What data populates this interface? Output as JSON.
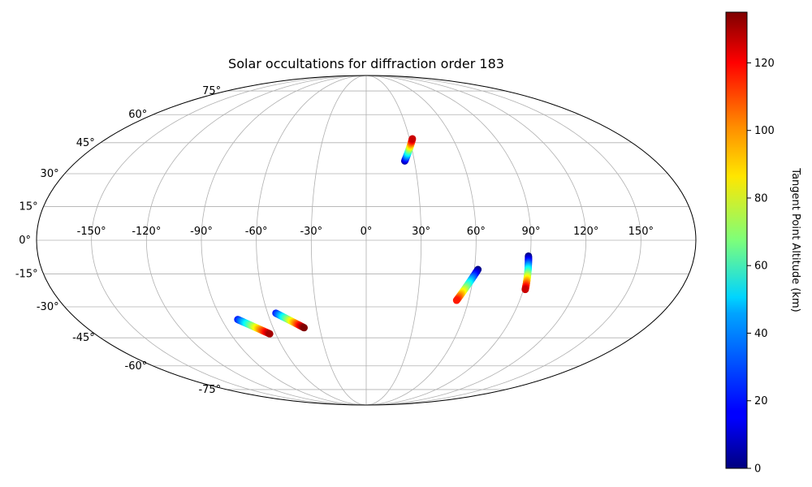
{
  "chart_data": {
    "type": "scatter",
    "projection": "Mollweide",
    "title": "Solar occultations for diffraction order 183",
    "xlabel": "",
    "ylabel": "",
    "longitude_ticks": [
      -150,
      -120,
      -90,
      -60,
      -30,
      0,
      30,
      60,
      90,
      120,
      150
    ],
    "longitude_tick_labels": [
      "-150°",
      "-120°",
      "-90°",
      "-60°",
      "-30°",
      "0°",
      "30°",
      "60°",
      "90°",
      "120°",
      "150°"
    ],
    "latitude_ticks": [
      75,
      60,
      45,
      30,
      15,
      0,
      -15,
      -30,
      -45,
      -60,
      -75
    ],
    "latitude_tick_labels": [
      "75°",
      "60°",
      "45°",
      "30°",
      "15°",
      "0°",
      "-15°",
      "-30°",
      "-45°",
      "-60°",
      "-75°"
    ],
    "grid": true,
    "colorbar": {
      "label": "Tangent Point Altitude (km)",
      "colormap": "jet",
      "range": [
        0,
        135
      ],
      "ticks": [
        0,
        20,
        40,
        60,
        80,
        100,
        120
      ],
      "tick_labels": [
        "0",
        "20",
        "40",
        "60",
        "80",
        "100",
        "120"
      ]
    },
    "occultations": [
      {
        "lon_start": 24,
        "lat_start": 36,
        "lon_end": 32,
        "lat_end": 47,
        "alt_start": 5,
        "alt_end": 125
      },
      {
        "lon_start": 62,
        "lat_start": -13,
        "lon_end": 53,
        "lat_end": -27,
        "alt_start": 0,
        "alt_end": 115
      },
      {
        "lon_start": 89,
        "lat_start": -7,
        "lon_end": 91,
        "lat_end": -22,
        "alt_start": 0,
        "alt_end": 125
      },
      {
        "lon_start": -80,
        "lat_start": -36,
        "lon_end": -64,
        "lat_end": -43,
        "alt_start": 20,
        "alt_end": 130
      },
      {
        "lon_start": -55,
        "lat_start": -33,
        "lon_end": -40,
        "lat_end": -40,
        "alt_start": 20,
        "alt_end": 135
      }
    ]
  }
}
